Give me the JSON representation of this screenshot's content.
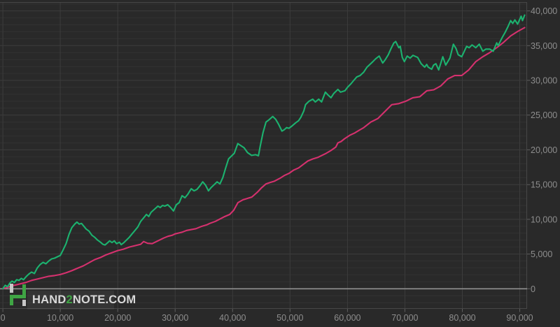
{
  "logo": {
    "part1": "HAND",
    "part2": "2",
    "part3": "NOTE.COM",
    "text_color": "#d8d8d8",
    "accent_color": "#3fa544",
    "icon_green": "#3fa544",
    "icon_gray": "#c6c6c6"
  },
  "chart_data": {
    "type": "line",
    "title": "",
    "xlabel": "",
    "ylabel": "",
    "x_unit": "hands",
    "y_unit": "winnings",
    "legend": "none",
    "grid": {
      "h_minor_step": 1000,
      "h_major_step": 5000,
      "v_step": 10000
    },
    "xlim": [
      -500,
      91280
    ],
    "ylim": [
      -2890,
      41270
    ],
    "x_ticks": [
      {
        "v": 0,
        "label": "0"
      },
      {
        "v": 10000,
        "label": "10,000"
      },
      {
        "v": 20000,
        "label": "20,000"
      },
      {
        "v": 30000,
        "label": "30,000"
      },
      {
        "v": 40000,
        "label": "40,000"
      },
      {
        "v": 50000,
        "label": "50,000"
      },
      {
        "v": 60000,
        "label": "60,000"
      },
      {
        "v": 70000,
        "label": "70,000"
      },
      {
        "v": 80000,
        "label": "80,000"
      },
      {
        "v": 90000,
        "label": "90,000"
      }
    ],
    "y_ticks": [
      {
        "v": 0,
        "label": "0"
      },
      {
        "v": 5000,
        "label": "5,000"
      },
      {
        "v": 10000,
        "label": "10,000"
      },
      {
        "v": 15000,
        "label": "15,000"
      },
      {
        "v": 20000,
        "label": "20,000"
      },
      {
        "v": 25000,
        "label": "25,000"
      },
      {
        "v": 30000,
        "label": "30,000"
      },
      {
        "v": 35000,
        "label": "35,000"
      },
      {
        "v": 40000,
        "label": "40,000"
      }
    ],
    "colors": {
      "background": "#292929",
      "grid_minor": "#323232",
      "grid_major": "#3d3d3d",
      "grid_vertical": "#3c3c3c",
      "border": "#474747",
      "zero_line": "#919191",
      "tick": "#5f5f5f",
      "axis_text": "#8d8d8d",
      "winnings": "#1cb26f",
      "ev": "#d5316e"
    },
    "series": [
      {
        "name": "ev",
        "color_key": "ev",
        "points": [
          [
            0,
            0
          ],
          [
            1000,
            250
          ],
          [
            2000,
            500
          ],
          [
            3000,
            700
          ],
          [
            4000,
            900
          ],
          [
            5000,
            1200
          ],
          [
            6000,
            1400
          ],
          [
            7000,
            1600
          ],
          [
            8000,
            1800
          ],
          [
            9000,
            1900
          ],
          [
            10000,
            2050
          ],
          [
            11000,
            2300
          ],
          [
            12000,
            2600
          ],
          [
            13000,
            2950
          ],
          [
            14000,
            3300
          ],
          [
            15000,
            3750
          ],
          [
            16000,
            4200
          ],
          [
            17000,
            4500
          ],
          [
            18000,
            4900
          ],
          [
            19000,
            5200
          ],
          [
            20000,
            5500
          ],
          [
            21000,
            5700
          ],
          [
            22000,
            6000
          ],
          [
            23000,
            6200
          ],
          [
            24000,
            6400
          ],
          [
            24500,
            6800
          ],
          [
            25200,
            6550
          ],
          [
            26000,
            6500
          ],
          [
            27000,
            6900
          ],
          [
            28000,
            7300
          ],
          [
            28750,
            7550
          ],
          [
            29500,
            7700
          ],
          [
            30000,
            7900
          ],
          [
            31200,
            8150
          ],
          [
            32000,
            8400
          ],
          [
            33600,
            8650
          ],
          [
            34500,
            8950
          ],
          [
            35500,
            9200
          ],
          [
            36000,
            9400
          ],
          [
            37000,
            9700
          ],
          [
            38500,
            10350
          ],
          [
            39500,
            10700
          ],
          [
            40200,
            11300
          ],
          [
            40930,
            12400
          ],
          [
            41800,
            12800
          ],
          [
            43360,
            13200
          ],
          [
            44300,
            13900
          ],
          [
            45000,
            14500
          ],
          [
            45820,
            15100
          ],
          [
            46500,
            15300
          ],
          [
            47300,
            15500
          ],
          [
            48230,
            15900
          ],
          [
            49000,
            16300
          ],
          [
            49800,
            16600
          ],
          [
            50670,
            17100
          ],
          [
            51500,
            17400
          ],
          [
            52300,
            17900
          ],
          [
            53100,
            18400
          ],
          [
            54000,
            18700
          ],
          [
            54800,
            18900
          ],
          [
            55540,
            19200
          ],
          [
            56300,
            19500
          ],
          [
            57130,
            19900
          ],
          [
            57970,
            20400
          ],
          [
            58340,
            21000
          ],
          [
            58900,
            21200
          ],
          [
            59500,
            21600
          ],
          [
            60410,
            22100
          ],
          [
            61200,
            22400
          ],
          [
            62000,
            22800
          ],
          [
            62850,
            23200
          ],
          [
            64060,
            24000
          ],
          [
            65280,
            24500
          ],
          [
            66500,
            25500
          ],
          [
            67720,
            26500
          ],
          [
            68940,
            26650
          ],
          [
            70150,
            27000
          ],
          [
            71370,
            27500
          ],
          [
            72590,
            27650
          ],
          [
            73810,
            28500
          ],
          [
            75030,
            28650
          ],
          [
            76240,
            29200
          ],
          [
            77460,
            30200
          ],
          [
            78680,
            30700
          ],
          [
            79900,
            30700
          ],
          [
            81120,
            31500
          ],
          [
            82340,
            32700
          ],
          [
            83560,
            33400
          ],
          [
            84770,
            34000
          ],
          [
            85990,
            34700
          ],
          [
            87210,
            35500
          ],
          [
            88420,
            36400
          ],
          [
            89630,
            37050
          ],
          [
            90850,
            37600
          ]
        ]
      },
      {
        "name": "winnings",
        "color_key": "winnings",
        "points": [
          [
            0,
            0
          ],
          [
            400,
            500
          ],
          [
            800,
            300
          ],
          [
            1200,
            800
          ],
          [
            1600,
            1100
          ],
          [
            2000,
            900
          ],
          [
            2400,
            1300
          ],
          [
            2800,
            1200
          ],
          [
            3200,
            1500
          ],
          [
            3600,
            1300
          ],
          [
            4000,
            1700
          ],
          [
            4500,
            2100
          ],
          [
            5000,
            2400
          ],
          [
            5500,
            2200
          ],
          [
            6000,
            3000
          ],
          [
            6500,
            3500
          ],
          [
            7000,
            3800
          ],
          [
            7500,
            3600
          ],
          [
            8000,
            4000
          ],
          [
            8500,
            4300
          ],
          [
            9000,
            4400
          ],
          [
            9500,
            4600
          ],
          [
            10000,
            4800
          ],
          [
            10500,
            5600
          ],
          [
            11000,
            6500
          ],
          [
            11500,
            7800
          ],
          [
            12000,
            8800
          ],
          [
            12500,
            9300
          ],
          [
            12900,
            9600
          ],
          [
            13300,
            9300
          ],
          [
            13700,
            9400
          ],
          [
            14100,
            9000
          ],
          [
            14500,
            8600
          ],
          [
            15000,
            8300
          ],
          [
            15500,
            7700
          ],
          [
            16000,
            7400
          ],
          [
            16500,
            7000
          ],
          [
            17000,
            6700
          ],
          [
            17400,
            6400
          ],
          [
            17800,
            6300
          ],
          [
            18200,
            6600
          ],
          [
            18600,
            6900
          ],
          [
            19000,
            6650
          ],
          [
            19400,
            6900
          ],
          [
            19800,
            6500
          ],
          [
            20300,
            6700
          ],
          [
            20600,
            6350
          ],
          [
            21000,
            6600
          ],
          [
            21500,
            7000
          ],
          [
            22000,
            7400
          ],
          [
            22500,
            7900
          ],
          [
            23000,
            8400
          ],
          [
            23500,
            8900
          ],
          [
            24000,
            9700
          ],
          [
            24500,
            10200
          ],
          [
            25000,
            10700
          ],
          [
            25400,
            10400
          ],
          [
            25800,
            11000
          ],
          [
            26200,
            11300
          ],
          [
            26600,
            11600
          ],
          [
            27000,
            11900
          ],
          [
            27400,
            11700
          ],
          [
            27800,
            12000
          ],
          [
            28200,
            11900
          ],
          [
            28700,
            12100
          ],
          [
            29200,
            11700
          ],
          [
            29700,
            11200
          ],
          [
            30200,
            12100
          ],
          [
            30700,
            12400
          ],
          [
            31200,
            13400
          ],
          [
            31700,
            13100
          ],
          [
            32200,
            13600
          ],
          [
            32800,
            14400
          ],
          [
            33300,
            14100
          ],
          [
            33800,
            14300
          ],
          [
            34300,
            14800
          ],
          [
            34800,
            15400
          ],
          [
            35300,
            14900
          ],
          [
            35800,
            14100
          ],
          [
            36300,
            14600
          ],
          [
            36800,
            15000
          ],
          [
            37300,
            15400
          ],
          [
            37800,
            15100
          ],
          [
            38300,
            16000
          ],
          [
            38800,
            17400
          ],
          [
            39300,
            18700
          ],
          [
            39800,
            19100
          ],
          [
            40300,
            19500
          ],
          [
            40900,
            20900
          ],
          [
            42000,
            20300
          ],
          [
            42600,
            19600
          ],
          [
            43300,
            19200
          ],
          [
            44000,
            19300
          ],
          [
            44500,
            19150
          ],
          [
            44800,
            20500
          ],
          [
            45300,
            22500
          ],
          [
            45820,
            24000
          ],
          [
            46300,
            24300
          ],
          [
            47000,
            24800
          ],
          [
            47500,
            24400
          ],
          [
            48000,
            23700
          ],
          [
            48600,
            22700
          ],
          [
            49000,
            22900
          ],
          [
            49400,
            23200
          ],
          [
            49800,
            23100
          ],
          [
            50300,
            23400
          ],
          [
            51000,
            23900
          ],
          [
            51500,
            24200
          ],
          [
            51900,
            24700
          ],
          [
            52400,
            25600
          ],
          [
            52700,
            26500
          ],
          [
            53300,
            27000
          ],
          [
            53960,
            27300
          ],
          [
            54400,
            26900
          ],
          [
            55000,
            27300
          ],
          [
            55500,
            26900
          ],
          [
            56150,
            28300
          ],
          [
            56600,
            27900
          ],
          [
            57130,
            27500
          ],
          [
            57600,
            28100
          ],
          [
            58340,
            28700
          ],
          [
            58800,
            28300
          ],
          [
            59560,
            28500
          ],
          [
            60000,
            29000
          ],
          [
            60600,
            29500
          ],
          [
            61000,
            29900
          ],
          [
            61630,
            30500
          ],
          [
            62200,
            30700
          ],
          [
            62850,
            31200
          ],
          [
            63400,
            31900
          ],
          [
            64430,
            32700
          ],
          [
            64900,
            33100
          ],
          [
            65530,
            33500
          ],
          [
            66140,
            32500
          ],
          [
            66600,
            33000
          ],
          [
            67110,
            33700
          ],
          [
            67600,
            34600
          ],
          [
            68090,
            35400
          ],
          [
            68400,
            35600
          ],
          [
            68940,
            34700
          ],
          [
            69200,
            34900
          ],
          [
            69550,
            33300
          ],
          [
            69910,
            32700
          ],
          [
            70400,
            33500
          ],
          [
            70900,
            33200
          ],
          [
            71400,
            33600
          ],
          [
            72230,
            33300
          ],
          [
            72840,
            32400
          ],
          [
            73450,
            31900
          ],
          [
            73800,
            32300
          ],
          [
            74060,
            31900
          ],
          [
            74670,
            31600
          ],
          [
            75000,
            32200
          ],
          [
            75400,
            32400
          ],
          [
            75880,
            31500
          ],
          [
            76610,
            33400
          ],
          [
            77100,
            32200
          ],
          [
            77830,
            33200
          ],
          [
            78440,
            35200
          ],
          [
            78900,
            34600
          ],
          [
            79290,
            33700
          ],
          [
            79900,
            33400
          ],
          [
            80750,
            34900
          ],
          [
            81200,
            34700
          ],
          [
            81700,
            35100
          ],
          [
            82340,
            34700
          ],
          [
            82950,
            35200
          ],
          [
            83560,
            34200
          ],
          [
            84100,
            34500
          ],
          [
            84770,
            34500
          ],
          [
            85380,
            34200
          ],
          [
            85990,
            35400
          ],
          [
            86230,
            35000
          ],
          [
            86960,
            36200
          ],
          [
            87450,
            36900
          ],
          [
            87930,
            37700
          ],
          [
            88420,
            38600
          ],
          [
            88780,
            38200
          ],
          [
            89150,
            38700
          ],
          [
            89630,
            38100
          ],
          [
            90000,
            38800
          ],
          [
            90240,
            39240
          ],
          [
            90480,
            38600
          ],
          [
            90850,
            39400
          ]
        ]
      }
    ]
  }
}
